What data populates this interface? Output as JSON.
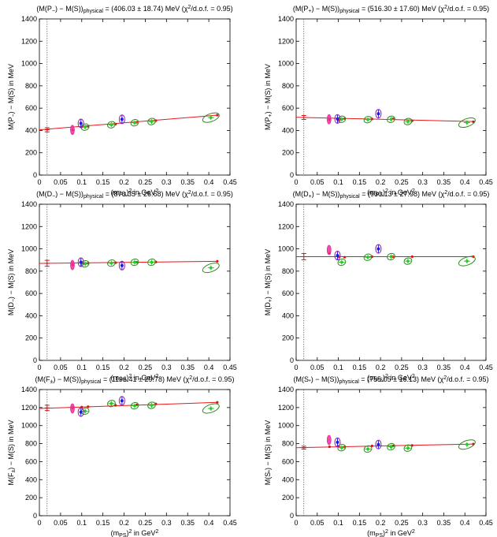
{
  "chart_data": [
    {
      "type": "scatter",
      "title": "(M(P_) − M(S))physical = (406.03 ± 18.74) MeV (χ²/d.o.f. = 0.95)",
      "title_parts": {
        "pre": "(M(P",
        "sub1": "−",
        "mid": ") − M(S))",
        "sub2": "physical",
        "post": " = (406.03 ± 18.74) MeV (χ",
        "sup": "2",
        "tail": "/d.o.f. = 0.95)"
      },
      "ylabel_parts": {
        "pre": "M(P",
        "sub": "−",
        "post": ") − M(S) in MeV"
      },
      "xlabel_parts": {
        "pre": "(m",
        "sub": "PS",
        "mid": ")",
        "sup": "2",
        "post": " in GeV",
        "sup2": "2"
      },
      "xlim": [
        0,
        0.45
      ],
      "ylim": [
        0,
        1400
      ],
      "x_ticks": [
        "0",
        "0.05",
        "0.1",
        "0.15",
        "0.2",
        "0.25",
        "0.3",
        "0.35",
        "0.4",
        "0.45"
      ],
      "y_ticks": [
        "0",
        "200",
        "400",
        "600",
        "800",
        "1000",
        "1200",
        "1400"
      ],
      "physical_point": {
        "x": 0.0182,
        "y": 406.03,
        "err": 18.74
      },
      "fit_line": {
        "x": [
          0,
          0.42
        ],
        "y": [
          406,
          537
        ]
      },
      "points_green": [
        {
          "x": 0.108,
          "y": 430
        },
        {
          "x": 0.17,
          "y": 451
        },
        {
          "x": 0.225,
          "y": 469
        },
        {
          "x": 0.265,
          "y": 480
        },
        {
          "x": 0.405,
          "y": 515
        }
      ],
      "points_blue": [
        {
          "x": 0.098,
          "y": 463
        },
        {
          "x": 0.195,
          "y": 500
        }
      ],
      "points_magenta": [
        {
          "x": 0.078,
          "y": 405
        }
      ],
      "points_red": [
        {
          "x": 0.079,
          "y": 404
        },
        {
          "x": 0.1,
          "y": 432
        },
        {
          "x": 0.115,
          "y": 436
        },
        {
          "x": 0.18,
          "y": 457
        },
        {
          "x": 0.23,
          "y": 473
        },
        {
          "x": 0.275,
          "y": 488
        },
        {
          "x": 0.42,
          "y": 537
        }
      ]
    },
    {
      "type": "scatter",
      "title": "(M(P+) − M(S))physical = (516.30 ± 17.60) MeV (χ²/d.o.f. = 0.95)",
      "title_parts": {
        "pre": "(M(P",
        "sub1": "+",
        "mid": ") − M(S))",
        "sub2": "physical",
        "post": " = (516.30 ± 17.60) MeV (χ",
        "sup": "2",
        "tail": "/d.o.f. = 0.95)"
      },
      "ylabel_parts": {
        "pre": "M(P",
        "sub": "+",
        "post": ") − M(S) in MeV"
      },
      "xlabel_parts": {
        "pre": "(m",
        "sub": "PS",
        "mid": ")",
        "sup": "2",
        "post": " in GeV",
        "sup2": "2"
      },
      "xlim": [
        0,
        0.45
      ],
      "ylim": [
        0,
        1400
      ],
      "x_ticks": [
        "0",
        "0.05",
        "0.1",
        "0.15",
        "0.2",
        "0.25",
        "0.3",
        "0.35",
        "0.4",
        "0.45"
      ],
      "y_ticks": [
        "0",
        "200",
        "400",
        "600",
        "800",
        "1000",
        "1200",
        "1400"
      ],
      "physical_point": {
        "x": 0.0182,
        "y": 516.3,
        "err": 17.6
      },
      "fit_line": {
        "x": [
          0,
          0.42
        ],
        "y": [
          518,
          480
        ]
      },
      "points_green": [
        {
          "x": 0.108,
          "y": 500
        },
        {
          "x": 0.17,
          "y": 497
        },
        {
          "x": 0.225,
          "y": 500
        },
        {
          "x": 0.265,
          "y": 480
        },
        {
          "x": 0.405,
          "y": 470
        }
      ],
      "points_blue": [
        {
          "x": 0.098,
          "y": 503
        },
        {
          "x": 0.195,
          "y": 550
        }
      ],
      "points_magenta": [
        {
          "x": 0.078,
          "y": 500
        }
      ],
      "points_red": [
        {
          "x": 0.079,
          "y": 498
        },
        {
          "x": 0.1,
          "y": 495
        },
        {
          "x": 0.115,
          "y": 505
        },
        {
          "x": 0.18,
          "y": 503
        },
        {
          "x": 0.23,
          "y": 505
        },
        {
          "x": 0.275,
          "y": 487
        },
        {
          "x": 0.42,
          "y": 478
        }
      ]
    },
    {
      "type": "scatter",
      "title": "(M(D_) − M(S))physical = (870.35 ± 26.68) MeV (χ²/d.o.f. = 0.95)",
      "title_parts": {
        "pre": "(M(D",
        "sub1": "−",
        "mid": ") − M(S))",
        "sub2": "physical",
        "post": " = (870.35 ± 26.68) MeV (χ",
        "sup": "2",
        "tail": "/d.o.f. = 0.95)"
      },
      "ylabel_parts": {
        "pre": "M(D",
        "sub": "−",
        "post": ") − M(S) in MeV"
      },
      "xlabel_parts": {
        "pre": "(m",
        "sub": "PS",
        "mid": ")",
        "sup": "2",
        "post": " in GeV",
        "sup2": "2"
      },
      "xlim": [
        0,
        0.45
      ],
      "ylim": [
        0,
        1400
      ],
      "x_ticks": [
        "0",
        "0.05",
        "0.1",
        "0.15",
        "0.2",
        "0.25",
        "0.3",
        "0.35",
        "0.4",
        "0.45"
      ],
      "y_ticks": [
        "0",
        "200",
        "400",
        "600",
        "800",
        "1000",
        "1200",
        "1400"
      ],
      "physical_point": {
        "x": 0.0182,
        "y": 870.35,
        "err": 26.68
      },
      "fit_line": {
        "x": [
          0,
          0.42
        ],
        "y": [
          870,
          888
        ]
      },
      "points_green": [
        {
          "x": 0.108,
          "y": 865
        },
        {
          "x": 0.17,
          "y": 872
        },
        {
          "x": 0.225,
          "y": 880
        },
        {
          "x": 0.265,
          "y": 880
        },
        {
          "x": 0.405,
          "y": 830
        }
      ],
      "points_blue": [
        {
          "x": 0.098,
          "y": 880
        },
        {
          "x": 0.195,
          "y": 850
        }
      ],
      "points_magenta": [
        {
          "x": 0.078,
          "y": 855
        }
      ],
      "points_red": [
        {
          "x": 0.079,
          "y": 857
        },
        {
          "x": 0.1,
          "y": 870
        },
        {
          "x": 0.115,
          "y": 870
        },
        {
          "x": 0.18,
          "y": 876
        },
        {
          "x": 0.23,
          "y": 880
        },
        {
          "x": 0.275,
          "y": 882
        },
        {
          "x": 0.42,
          "y": 888
        }
      ]
    },
    {
      "type": "scatter",
      "title": "(M(D+) − M(S))physical = (930.13 ± 27.98) MeV (χ²/d.o.f. = 0.95)",
      "title_parts": {
        "pre": "(M(D",
        "sub1": "+",
        "mid": ") − M(S))",
        "sub2": "physical",
        "post": " = (930.13 ± 27.98) MeV (χ",
        "sup": "2",
        "tail": "/d.o.f. = 0.95)"
      },
      "ylabel_parts": {
        "pre": "M(D",
        "sub": "+",
        "post": ") − M(S) in MeV"
      },
      "xlabel_parts": {
        "pre": "(m",
        "sub": "PS",
        "mid": ")",
        "sup": "2",
        "post": " in GeV",
        "sup2": "2"
      },
      "xlim": [
        0,
        0.45
      ],
      "ylim": [
        0,
        1400
      ],
      "x_ticks": [
        "0",
        "0.05",
        "0.1",
        "0.15",
        "0.2",
        "0.25",
        "0.3",
        "0.35",
        "0.4",
        "0.45"
      ],
      "y_ticks": [
        "0",
        "200",
        "400",
        "600",
        "800",
        "1000",
        "1200",
        "1400"
      ],
      "physical_point": {
        "x": 0.0182,
        "y": 930.13,
        "err": 27.98
      },
      "fit_line": {
        "x": [
          0,
          0.42
        ],
        "y": [
          930,
          930
        ]
      },
      "points_green": [
        {
          "x": 0.108,
          "y": 880
        },
        {
          "x": 0.17,
          "y": 925
        },
        {
          "x": 0.225,
          "y": 930
        },
        {
          "x": 0.265,
          "y": 890
        },
        {
          "x": 0.405,
          "y": 890
        }
      ],
      "points_blue": [
        {
          "x": 0.098,
          "y": 940
        },
        {
          "x": 0.195,
          "y": 1000
        }
      ],
      "points_magenta": [
        {
          "x": 0.078,
          "y": 990
        }
      ],
      "points_red": [
        {
          "x": 0.079,
          "y": 960
        },
        {
          "x": 0.1,
          "y": 930
        },
        {
          "x": 0.115,
          "y": 925
        },
        {
          "x": 0.18,
          "y": 930
        },
        {
          "x": 0.23,
          "y": 930
        },
        {
          "x": 0.275,
          "y": 930
        },
        {
          "x": 0.42,
          "y": 930
        }
      ]
    },
    {
      "type": "scatter",
      "title": "(M(F±) − M(S))physical = (1196.41 ± 29.78) MeV (χ²/d.o.f. = 0.95)",
      "title_parts": {
        "pre": "(M(F",
        "sub1": "±",
        "mid": ") − M(S))",
        "sub2": "physical",
        "post": " = (1196.41 ± 29.78) MeV (χ",
        "sup": "2",
        "tail": "/d.o.f. = 0.95)"
      },
      "ylabel_parts": {
        "pre": "M(F",
        "sub": "±",
        "post": ") − M(S) in MeV"
      },
      "xlabel_parts": {
        "pre": "(m",
        "sub": "PS",
        "mid": ")",
        "sup": "2",
        "post": " in GeV",
        "sup2": "2"
      },
      "xlim": [
        0,
        0.45
      ],
      "ylim": [
        0,
        1400
      ],
      "x_ticks": [
        "0",
        "0.05",
        "0.1",
        "0.15",
        "0.2",
        "0.25",
        "0.3",
        "0.35",
        "0.4",
        "0.45"
      ],
      "y_ticks": [
        "0",
        "200",
        "400",
        "600",
        "800",
        "1000",
        "1200",
        "1400"
      ],
      "physical_point": {
        "x": 0.0182,
        "y": 1196.41,
        "err": 29.78
      },
      "fit_line": {
        "x": [
          0,
          0.42
        ],
        "y": [
          1190,
          1258
        ]
      },
      "points_green": [
        {
          "x": 0.108,
          "y": 1160
        },
        {
          "x": 0.17,
          "y": 1245
        },
        {
          "x": 0.225,
          "y": 1220
        },
        {
          "x": 0.265,
          "y": 1225
        },
        {
          "x": 0.405,
          "y": 1190
        }
      ],
      "points_blue": [
        {
          "x": 0.098,
          "y": 1150
        },
        {
          "x": 0.195,
          "y": 1275
        }
      ],
      "points_magenta": [
        {
          "x": 0.078,
          "y": 1190
        }
      ],
      "points_red": [
        {
          "x": 0.079,
          "y": 1200
        },
        {
          "x": 0.1,
          "y": 1205
        },
        {
          "x": 0.115,
          "y": 1210
        },
        {
          "x": 0.18,
          "y": 1225
        },
        {
          "x": 0.23,
          "y": 1230
        },
        {
          "x": 0.275,
          "y": 1240
        },
        {
          "x": 0.42,
          "y": 1258
        }
      ]
    },
    {
      "type": "scatter",
      "title": "(M(S*) − M(S))physical = (755.05 ± 16.13) MeV (χ²/d.o.f. = 0.95)",
      "title_parts": {
        "pre": "(M(S",
        "sub1": "*",
        "mid": ") − M(S))",
        "sub2": "physical",
        "post": " = (755.05 ± 16.13) MeV (χ",
        "sup": "2",
        "tail": "/d.o.f. = 0.95)"
      },
      "ylabel_parts": {
        "pre": "M(S",
        "sub": "*",
        "post": ") − M(S) in MeV"
      },
      "xlabel_parts": {
        "pre": "(m",
        "sub": "PS",
        "mid": ")",
        "sup": "2",
        "post": " in GeV",
        "sup2": "2"
      },
      "xlim": [
        0,
        0.45
      ],
      "ylim": [
        0,
        1400
      ],
      "x_ticks": [
        "0",
        "0.05",
        "0.1",
        "0.15",
        "0.2",
        "0.25",
        "0.3",
        "0.35",
        "0.4",
        "0.45"
      ],
      "y_ticks": [
        "0",
        "200",
        "400",
        "600",
        "800",
        "1000",
        "1200",
        "1400"
      ],
      "physical_point": {
        "x": 0.0182,
        "y": 755.05,
        "err": 16.13
      },
      "fit_line": {
        "x": [
          0,
          0.42
        ],
        "y": [
          755,
          795
        ]
      },
      "points_green": [
        {
          "x": 0.108,
          "y": 755
        },
        {
          "x": 0.17,
          "y": 740
        },
        {
          "x": 0.225,
          "y": 765
        },
        {
          "x": 0.265,
          "y": 750
        },
        {
          "x": 0.405,
          "y": 790
        }
      ],
      "points_blue": [
        {
          "x": 0.098,
          "y": 815
        },
        {
          "x": 0.195,
          "y": 790
        }
      ],
      "points_magenta": [
        {
          "x": 0.078,
          "y": 840
        }
      ],
      "points_red": [
        {
          "x": 0.079,
          "y": 765
        },
        {
          "x": 0.1,
          "y": 770
        },
        {
          "x": 0.115,
          "y": 760
        },
        {
          "x": 0.18,
          "y": 775
        },
        {
          "x": 0.23,
          "y": 775
        },
        {
          "x": 0.275,
          "y": 780
        },
        {
          "x": 0.42,
          "y": 795
        }
      ]
    }
  ],
  "colors": {
    "fit": "#e8181a",
    "green": "#22cc22",
    "green_ellipse": "#2e8b22",
    "blue": "#1a1aee",
    "blue_ellipse": "#9a1aa8",
    "magenta": "#ee2d9a",
    "red": "#dd1111",
    "dotted": "#555555",
    "axis": "#000000"
  }
}
